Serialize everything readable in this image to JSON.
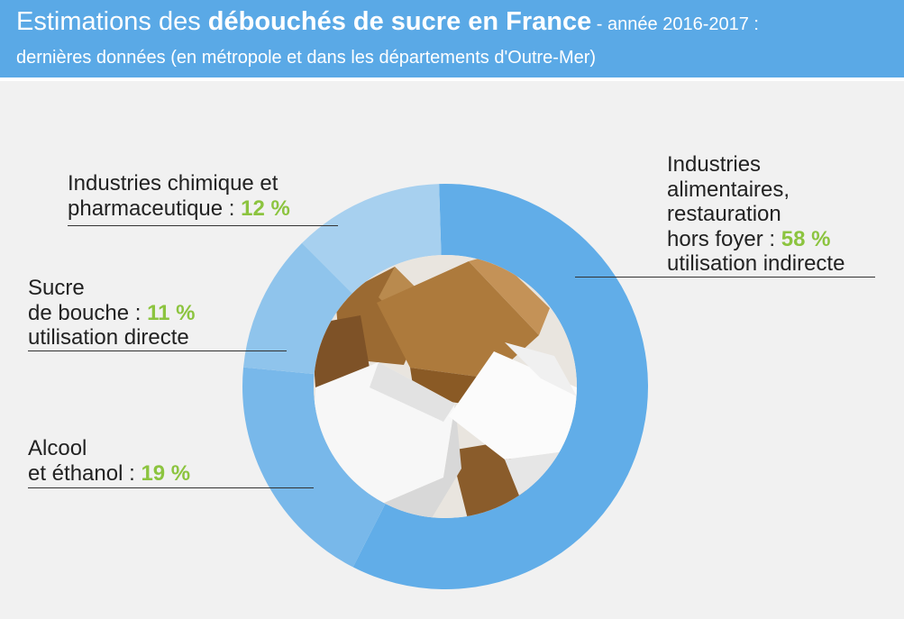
{
  "header": {
    "title_part1": "Estimations des ",
    "title_part2": "débouchés de sucre en France",
    "title_part3": " - année 2016-2017 :",
    "subtitle": "dernières données (en métropole et dans les départements d'Outre-Mer)"
  },
  "colors": {
    "header_bg": "#5aa9e6",
    "percent_green": "#8cc43f",
    "background": "#f1f1f1"
  },
  "chart_data": {
    "type": "donut",
    "title": "Estimations des débouchés de sucre en France - année 2016-2017 : dernières données (en métropole et dans les départements d'Outre-Mer)",
    "unit": "%",
    "slices": [
      {
        "name": "Industries alimentaires, restauration hors foyer",
        "value": 58,
        "label_lines": [
          "Industries",
          "alimentaires,",
          "restauration",
          "hors foyer : "
        ],
        "pct_text": "58 %",
        "note": "utilisation indirecte",
        "color": "#61ade8"
      },
      {
        "name": "Alcool et éthanol",
        "value": 19,
        "label_lines": [
          "Alcool",
          "et éthanol : "
        ],
        "pct_text": "19 %",
        "color": "#78b8ea"
      },
      {
        "name": "Sucre de bouche",
        "value": 11,
        "label_lines": [
          "Sucre",
          "de bouche : "
        ],
        "pct_text": "11 %",
        "note": "utilisation directe",
        "color": "#8fc4ec"
      },
      {
        "name": "Industries chimique et pharmaceutique",
        "value": 12,
        "label_lines": [
          "Industries chimique et",
          "pharmaceutique : "
        ],
        "pct_text": "12 %",
        "color": "#a7d0ef"
      }
    ],
    "legend": "none",
    "center_image": "sugar-cubes photo"
  }
}
